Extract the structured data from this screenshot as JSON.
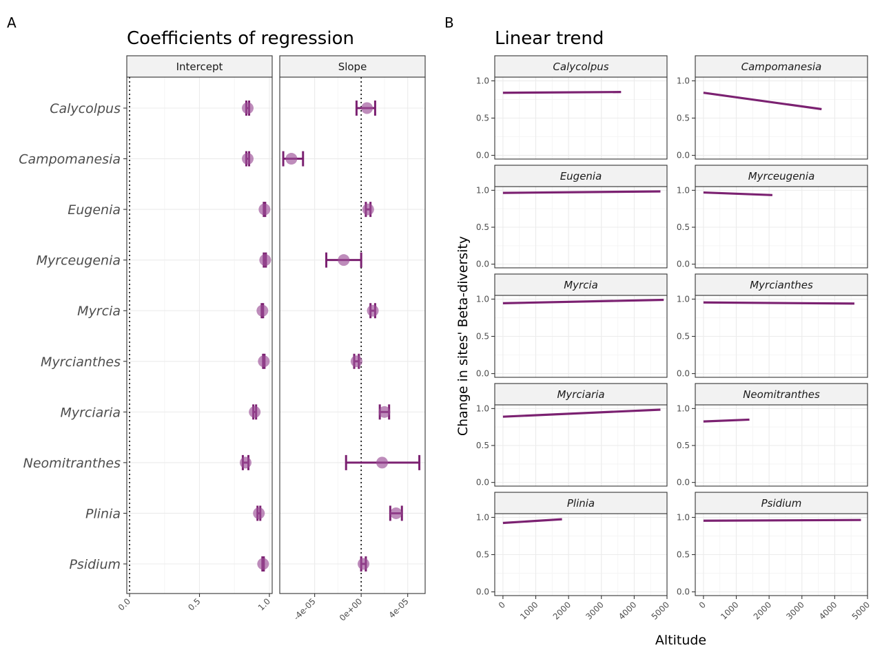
{
  "chart_data": [
    {
      "type": "scatter",
      "panel_label": "A",
      "title": "Coefficients of regression",
      "categories": [
        "Calycolpus",
        "Campomanesia",
        "Eugenia",
        "Myrceugenia",
        "Myrcia",
        "Myrcianthes",
        "Myrciaria",
        "Neomitranthes",
        "Plinia",
        "Psidium"
      ],
      "facets": [
        {
          "name": "Intercept",
          "xlim": [
            -0.02,
            1.02
          ],
          "ticks": [
            "0.0",
            "0.5",
            "1.0"
          ],
          "tick_values": [
            0.0,
            0.5,
            1.0
          ],
          "reference_line": 0,
          "estimates": [
            0.845,
            0.845,
            0.965,
            0.97,
            0.95,
            0.96,
            0.895,
            0.83,
            0.925,
            0.955
          ],
          "ci_low": [
            0.835,
            0.835,
            0.96,
            0.96,
            0.945,
            0.955,
            0.885,
            0.81,
            0.915,
            0.95
          ],
          "ci_high": [
            0.855,
            0.855,
            0.97,
            0.975,
            0.955,
            0.965,
            0.905,
            0.85,
            0.935,
            0.96
          ]
        },
        {
          "name": "Slope",
          "xlim": [
            -7e-05,
            5.5e-05
          ],
          "ticks": [
            "-4e-05",
            "0e+00",
            "4e-05"
          ],
          "tick_values": [
            -4e-05,
            0,
            4e-05
          ],
          "reference_line": 0,
          "estimates": [
            5e-06,
            -6e-05,
            6e-06,
            -1.5e-05,
            1e-05,
            -4e-06,
            2e-05,
            1.8e-05,
            3e-05,
            2e-06
          ],
          "ci_low": [
            -4e-06,
            -6.7e-05,
            4e-06,
            -3e-05,
            8e-06,
            -6e-06,
            1.6e-05,
            -1.3e-05,
            2.5e-05,
            0
          ],
          "ci_high": [
            1.2e-05,
            -5e-05,
            8e-06,
            0,
            1.2e-05,
            -2e-06,
            2.4e-05,
            5e-05,
            3.5e-05,
            4e-06
          ]
        }
      ],
      "point_color": "#9B4F96",
      "line_color": "#7B2171"
    },
    {
      "type": "line",
      "panel_label": "B",
      "title": "Linear trend",
      "xlabel": "Altitude",
      "ylabel": "Change in sites' Beta-diversity",
      "xlim": [
        -250,
        5000
      ],
      "ylim": [
        -0.05,
        1.05
      ],
      "xticks": [
        0,
        1000,
        2000,
        3000,
        4000,
        5000
      ],
      "yticks": [
        "0.0",
        "0.5",
        "1.0"
      ],
      "ytick_values": [
        0.0,
        0.5,
        1.0
      ],
      "line_color": "#7B2171",
      "series": [
        {
          "name": "Calycolpus",
          "x": [
            0,
            3600
          ],
          "y": [
            0.84,
            0.85
          ]
        },
        {
          "name": "Campomanesia",
          "x": [
            0,
            3600
          ],
          "y": [
            0.84,
            0.62
          ]
        },
        {
          "name": "Eugenia",
          "x": [
            0,
            4800
          ],
          "y": [
            0.965,
            0.985
          ]
        },
        {
          "name": "Myrceugenia",
          "x": [
            0,
            2100
          ],
          "y": [
            0.97,
            0.935
          ]
        },
        {
          "name": "Myrcia",
          "x": [
            0,
            4900
          ],
          "y": [
            0.945,
            0.99
          ]
        },
        {
          "name": "Myrcianthes",
          "x": [
            0,
            4600
          ],
          "y": [
            0.955,
            0.94
          ]
        },
        {
          "name": "Myrciaria",
          "x": [
            0,
            4800
          ],
          "y": [
            0.89,
            0.985
          ]
        },
        {
          "name": "Neomitranthes",
          "x": [
            0,
            1400
          ],
          "y": [
            0.825,
            0.85
          ]
        },
        {
          "name": "Plinia",
          "x": [
            0,
            1800
          ],
          "y": [
            0.925,
            0.975
          ]
        },
        {
          "name": "Psidium",
          "x": [
            0,
            4800
          ],
          "y": [
            0.955,
            0.965
          ]
        }
      ]
    }
  ]
}
